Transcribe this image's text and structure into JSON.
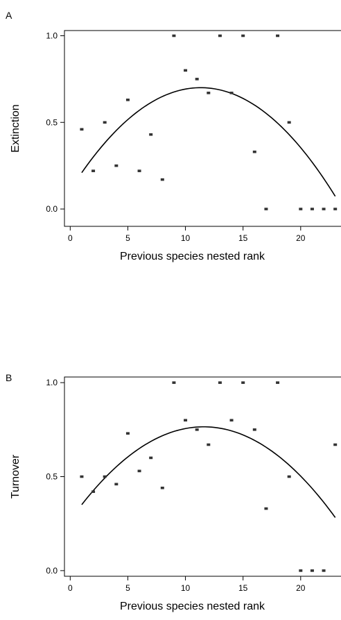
{
  "chart_data": [
    {
      "type": "scatter",
      "panel_label": "A",
      "xlabel": "Previous species nested rank",
      "ylabel": "Extinction",
      "xlim": [
        -0.5,
        23.5
      ],
      "ylim": [
        -0.1,
        1.03
      ],
      "xticks": [
        0,
        5,
        10,
        15,
        20
      ],
      "yticks": [
        0.0,
        0.5,
        1.0
      ],
      "ytick_labels": [
        "0.0",
        "0.5",
        "1.0"
      ],
      "grid": false,
      "points": {
        "x": [
          1,
          2,
          3,
          4,
          5,
          6,
          7,
          8,
          9,
          10,
          11,
          12,
          13,
          14,
          15,
          16,
          17,
          18,
          19,
          20,
          21,
          22,
          23
        ],
        "y": [
          0.46,
          0.22,
          0.5,
          0.25,
          0.63,
          0.22,
          0.43,
          0.17,
          1.0,
          0.8,
          0.75,
          0.67,
          1.0,
          0.67,
          1.0,
          0.33,
          0.0,
          1.0,
          0.5,
          0.0,
          0.0,
          0.0,
          0.0
        ]
      },
      "fit": {
        "type": "quadratic",
        "x_range": [
          1,
          23
        ],
        "a": -0.0046,
        "b": 0.1042,
        "c": 0.1102
      }
    },
    {
      "type": "scatter",
      "panel_label": "B",
      "xlabel": "Previous species nested rank",
      "ylabel": "Turnover",
      "xlim": [
        -0.5,
        23.5
      ],
      "ylim": [
        -0.03,
        1.03
      ],
      "xticks": [
        0,
        5,
        10,
        15,
        20
      ],
      "yticks": [
        0.0,
        0.5,
        1.0
      ],
      "ytick_labels": [
        "0.0",
        "0.5",
        "1.0"
      ],
      "grid": false,
      "points": {
        "x": [
          1,
          2,
          3,
          4,
          5,
          6,
          7,
          8,
          9,
          10,
          11,
          12,
          13,
          14,
          15,
          16,
          17,
          18,
          19,
          20,
          21,
          22,
          23
        ],
        "y": [
          0.5,
          0.42,
          0.5,
          0.46,
          0.73,
          0.53,
          0.6,
          0.44,
          1.0,
          0.8,
          0.75,
          0.67,
          1.0,
          0.8,
          1.0,
          0.75,
          0.33,
          1.0,
          0.5,
          0.0,
          0.0,
          0.0,
          0.67
        ]
      },
      "fit": {
        "type": "quadratic",
        "x_range": [
          1,
          23
        ],
        "a": -0.0037,
        "b": 0.0857,
        "c": 0.2688
      }
    }
  ]
}
